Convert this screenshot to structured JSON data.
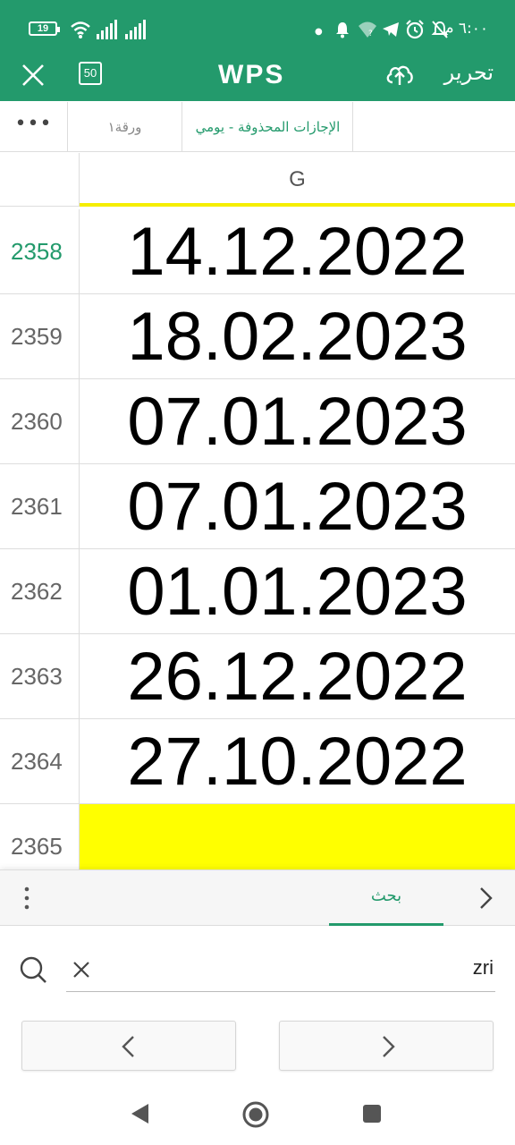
{
  "status_bar": {
    "time": "٦:٠٠ م",
    "battery": "19"
  },
  "app_bar": {
    "logo": "WPS",
    "pages_count": "50",
    "edit_label": "تحرير"
  },
  "sheet_tabs": {
    "more": "•••",
    "tabs": [
      {
        "label": "ورقة١",
        "active": false
      },
      {
        "label": "الإجازات المحذوفة - يومي",
        "active": true
      }
    ]
  },
  "grid": {
    "column_header": "G",
    "rows": [
      {
        "number": "2358",
        "value": "14.12.2022",
        "selected": true
      },
      {
        "number": "2359",
        "value": "18.02.2023",
        "selected": false
      },
      {
        "number": "2360",
        "value": "07.01.2023",
        "selected": false
      },
      {
        "number": "2361",
        "value": "07.01.2023",
        "selected": false
      },
      {
        "number": "2362",
        "value": "01.01.2023",
        "selected": false
      },
      {
        "number": "2363",
        "value": "26.12.2022",
        "selected": false
      },
      {
        "number": "2364",
        "value": "27.10.2022",
        "selected": false
      },
      {
        "number": "2365",
        "value": "",
        "highlight": "#ffff00"
      }
    ]
  },
  "search_panel": {
    "tab_label": "بحث",
    "query": "zri"
  },
  "colors": {
    "accent": "#239a6c",
    "highlight": "#ffff00"
  }
}
